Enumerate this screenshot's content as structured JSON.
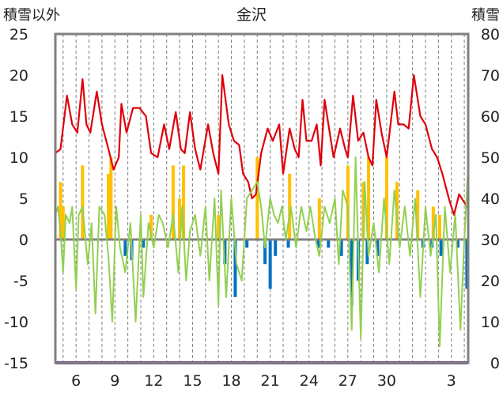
{
  "chart_data": {
    "type": "line",
    "title": "金沢",
    "ylabel_left": "積雪以外",
    "ylabel_right": "積雪",
    "ylim_left": [
      -15,
      25
    ],
    "ylim_right": [
      0,
      80
    ],
    "yticks_left": [
      "25",
      "20",
      "15",
      "10",
      "5",
      "0",
      "-5",
      "-10",
      "-15"
    ],
    "yticks_right": [
      "80",
      "70",
      "60",
      "50",
      "40",
      "30",
      "20",
      "10",
      "0"
    ],
    "x_range": [
      4.4,
      4.3
    ],
    "x_ticks": [
      6,
      9,
      12,
      15,
      18,
      21,
      24,
      27,
      30,
      3
    ],
    "x_tick_labels": [
      "6",
      "9",
      "12",
      "15",
      "18",
      "21",
      "24",
      "27",
      "30",
      "3"
    ],
    "colors": {
      "max_temperature": "#e0000b",
      "temperature": "#92d050",
      "precipitation": "#ffc000",
      "precip_negative": "#0070c0",
      "snow_depth": "#7030a0",
      "zero_line": "#808080",
      "frame": "#808080",
      "grid": "#808080"
    },
    "series": [
      {
        "key": "red",
        "style": "line",
        "points": [
          [
            4.4,
            10.5
          ],
          [
            4.8,
            11
          ],
          [
            5.3,
            17.5
          ],
          [
            5.7,
            14
          ],
          [
            6.1,
            13
          ],
          [
            6.5,
            19.5
          ],
          [
            6.8,
            14
          ],
          [
            7.1,
            13
          ],
          [
            7.6,
            18
          ],
          [
            8.0,
            14
          ],
          [
            8.5,
            11
          ],
          [
            8.9,
            8.5
          ],
          [
            9.3,
            10
          ],
          [
            9.5,
            16.5
          ],
          [
            9.9,
            13
          ],
          [
            10.4,
            16
          ],
          [
            10.9,
            16
          ],
          [
            11.4,
            15
          ],
          [
            11.8,
            10.5
          ],
          [
            12.3,
            10
          ],
          [
            12.8,
            14
          ],
          [
            13.2,
            11
          ],
          [
            13.7,
            15.5
          ],
          [
            14.1,
            11
          ],
          [
            14.4,
            10.5
          ],
          [
            14.8,
            15.5
          ],
          [
            15.2,
            11
          ],
          [
            15.6,
            8.5
          ],
          [
            16.2,
            14
          ],
          [
            16.6,
            10.5
          ],
          [
            17.0,
            8
          ],
          [
            17.3,
            20
          ],
          [
            17.8,
            14
          ],
          [
            18.2,
            12
          ],
          [
            18.6,
            11.5
          ],
          [
            18.9,
            8
          ],
          [
            19.3,
            7
          ],
          [
            19.6,
            5
          ],
          [
            19.9,
            5.5
          ],
          [
            20.3,
            10.5
          ],
          [
            20.8,
            13.5
          ],
          [
            21.2,
            12
          ],
          [
            21.7,
            14
          ],
          [
            22.0,
            8
          ],
          [
            22.5,
            13.5
          ],
          [
            22.9,
            11
          ],
          [
            23.2,
            10
          ],
          [
            23.5,
            17
          ],
          [
            23.8,
            12
          ],
          [
            24.2,
            12
          ],
          [
            24.6,
            14
          ],
          [
            24.9,
            9
          ],
          [
            25.2,
            17
          ],
          [
            25.7,
            12
          ],
          [
            25.9,
            10
          ],
          [
            26.4,
            13.5
          ],
          [
            26.8,
            11
          ],
          [
            27.0,
            10
          ],
          [
            27.4,
            17.5
          ],
          [
            27.8,
            12
          ],
          [
            28.2,
            13
          ],
          [
            28.6,
            10
          ],
          [
            28.9,
            9
          ],
          [
            29.2,
            17
          ],
          [
            29.6,
            13
          ],
          [
            30.0,
            10
          ],
          [
            30.6,
            18
          ],
          [
            30.9,
            14
          ],
          [
            31.3,
            14
          ],
          [
            31.7,
            13.5
          ],
          [
            32.1,
            20
          ],
          [
            32.6,
            15
          ],
          [
            33.0,
            14
          ],
          [
            33.5,
            11
          ],
          [
            33.9,
            10
          ],
          [
            34.3,
            8
          ],
          [
            34.8,
            5
          ],
          [
            35.2,
            3
          ],
          [
            35.6,
            5.5
          ],
          [
            36.0,
            4.5
          ],
          [
            36.3,
            3.8
          ]
        ]
      },
      {
        "key": "green",
        "style": "line",
        "points": [
          [
            4.4,
            3
          ],
          [
            4.6,
            4
          ],
          [
            4.8,
            1
          ],
          [
            5.0,
            -4
          ],
          [
            5.2,
            3
          ],
          [
            5.5,
            2
          ],
          [
            5.7,
            4
          ],
          [
            6.0,
            -6
          ],
          [
            6.2,
            3
          ],
          [
            6.5,
            4
          ],
          [
            6.9,
            -3
          ],
          [
            7.2,
            2
          ],
          [
            7.5,
            -9
          ],
          [
            7.8,
            4
          ],
          [
            8.2,
            3
          ],
          [
            8.5,
            -2
          ],
          [
            8.8,
            -10
          ],
          [
            9.1,
            4
          ],
          [
            9.4,
            -1
          ],
          [
            9.8,
            -4
          ],
          [
            10.2,
            2
          ],
          [
            10.6,
            -10
          ],
          [
            11.0,
            3
          ],
          [
            11.2,
            -7
          ],
          [
            11.6,
            2
          ],
          [
            12.0,
            -1
          ],
          [
            12.4,
            3
          ],
          [
            12.7,
            2
          ],
          [
            13.1,
            -1
          ],
          [
            13.5,
            3
          ],
          [
            13.9,
            -4
          ],
          [
            14.2,
            4
          ],
          [
            14.5,
            -5
          ],
          [
            14.8,
            1
          ],
          [
            15.2,
            3
          ],
          [
            15.6,
            -2
          ],
          [
            16.0,
            4
          ],
          [
            16.3,
            -5
          ],
          [
            16.7,
            5
          ],
          [
            17.0,
            -8
          ],
          [
            17.2,
            6
          ],
          [
            17.6,
            -7
          ],
          [
            18.0,
            5
          ],
          [
            18.4,
            -3
          ],
          [
            18.8,
            -5
          ],
          [
            19.2,
            5
          ],
          [
            19.6,
            6
          ],
          [
            20.0,
            7
          ],
          [
            20.3,
            4
          ],
          [
            20.6,
            -1
          ],
          [
            21.0,
            5
          ],
          [
            21.3,
            3
          ],
          [
            21.6,
            2
          ],
          [
            21.9,
            4
          ],
          [
            22.2,
            0
          ],
          [
            22.6,
            4
          ],
          [
            23.0,
            -1
          ],
          [
            23.4,
            4
          ],
          [
            23.8,
            1
          ],
          [
            24.1,
            4
          ],
          [
            24.5,
            0
          ],
          [
            24.8,
            -2
          ],
          [
            25.2,
            4
          ],
          [
            25.6,
            2
          ],
          [
            26.0,
            5
          ],
          [
            26.3,
            -3
          ],
          [
            26.6,
            6
          ],
          [
            27.0,
            4
          ],
          [
            27.3,
            -11
          ],
          [
            27.6,
            10
          ],
          [
            28.0,
            -12
          ],
          [
            28.3,
            7
          ],
          [
            28.6,
            -2
          ],
          [
            29.0,
            2
          ],
          [
            29.4,
            -4
          ],
          [
            29.8,
            5
          ],
          [
            30.2,
            -3
          ],
          [
            30.6,
            6
          ],
          [
            31.0,
            -1
          ],
          [
            31.4,
            4
          ],
          [
            31.8,
            -2
          ],
          [
            32.2,
            5
          ],
          [
            32.6,
            -7
          ],
          [
            33.0,
            4
          ],
          [
            33.4,
            -2
          ],
          [
            33.8,
            3
          ],
          [
            34.1,
            -13
          ],
          [
            34.5,
            4
          ],
          [
            34.9,
            -4
          ],
          [
            35.3,
            3
          ],
          [
            35.7,
            -11
          ],
          [
            36.0,
            0
          ],
          [
            36.3,
            9
          ]
        ]
      },
      {
        "key": "orange",
        "style": "bars",
        "bars": [
          [
            4.8,
            7
          ],
          [
            5.0,
            4
          ],
          [
            6.5,
            9
          ],
          [
            8.5,
            8
          ],
          [
            8.7,
            10
          ],
          [
            11.8,
            3
          ],
          [
            13.5,
            9
          ],
          [
            14.0,
            5
          ],
          [
            14.3,
            9
          ],
          [
            17.0,
            3
          ],
          [
            20.0,
            10
          ],
          [
            22.5,
            8
          ],
          [
            24.8,
            5
          ],
          [
            27.0,
            9
          ],
          [
            28.2,
            7
          ],
          [
            28.6,
            10
          ],
          [
            30.0,
            10
          ],
          [
            30.8,
            7
          ],
          [
            32.4,
            6
          ],
          [
            33.6,
            4
          ],
          [
            34.1,
            3
          ]
        ]
      },
      {
        "key": "blue",
        "style": "bars",
        "bars": [
          [
            9.8,
            -2
          ],
          [
            10.3,
            -2.5
          ],
          [
            11.2,
            -1
          ],
          [
            17.5,
            -3
          ],
          [
            18.3,
            -7
          ],
          [
            19.2,
            -1
          ],
          [
            20.6,
            -3
          ],
          [
            21.0,
            -6
          ],
          [
            21.4,
            -2
          ],
          [
            22.4,
            -1
          ],
          [
            24.7,
            -1
          ],
          [
            25.5,
            -1
          ],
          [
            26.5,
            -2
          ],
          [
            27.3,
            -8
          ],
          [
            27.8,
            -5
          ],
          [
            28.5,
            -3
          ],
          [
            29.3,
            -2
          ],
          [
            32.8,
            -1
          ],
          [
            33.5,
            -1
          ],
          [
            34.2,
            -2
          ],
          [
            35.5,
            -1
          ],
          [
            36.2,
            -6
          ]
        ]
      },
      {
        "key": "purple",
        "style": "line",
        "points": [
          [
            4.4,
            0
          ],
          [
            36.3,
            0
          ]
        ]
      }
    ]
  }
}
